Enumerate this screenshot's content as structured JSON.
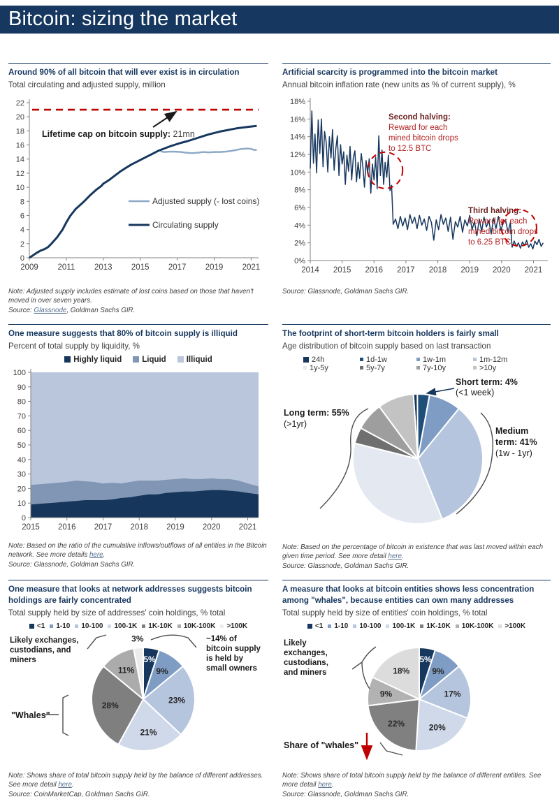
{
  "page": {
    "title": "Bitcoin: sizing the market"
  },
  "colors": {
    "band": "#16375f",
    "navy": "#17375e",
    "red": "#c00000",
    "link": "#55708e"
  },
  "sections": [
    {
      "id": "supply",
      "title": "Around 90% of all bitcoin that will ever exist is in circulation",
      "subtitle": "Total circulating and adjusted supply, million",
      "note": [
        {
          "text": "Note: Adjusted supply includes estimate of lost coins based on those that haven't moved in over seven years.\nSource: "
        },
        {
          "text": "Glassnode",
          "link": true
        },
        {
          "text": ", Goldman Sachs GIR."
        }
      ]
    },
    {
      "id": "inflation",
      "title": "Artificial scarcity is programmed into the bitcoin market",
      "subtitle": "Annual bitcoin inflation rate (new units as % of current supply), %",
      "note": [
        {
          "text": "Source: Glassnode, Goldman Sachs GIR."
        }
      ]
    },
    {
      "id": "liquidity",
      "title": "One measure suggests that 80% of bitcoin supply is illiquid",
      "subtitle": "Percent of total supply by liquidity, %",
      "note": [
        {
          "text": "Note: Based on the ratio of the cumulative inflows/outflows of all entities in the Bitcoin network. See more details "
        },
        {
          "text": "here",
          "link": true
        },
        {
          "text": ".\nSource: Glassnode, Goldman Sachs GIR."
        }
      ]
    },
    {
      "id": "age",
      "title": "The footprint of short-term bitcoin holders is fairly small",
      "subtitle": "Age distribution of bitcoin supply based on last transaction",
      "note": [
        {
          "text": "Note: Based on the percentage of bitcoin in existence that was last moved within each given time period. See more detail "
        },
        {
          "text": "here",
          "link": true
        },
        {
          "text": ".\nSource: Glassnode, Goldman Sachs GIR."
        }
      ]
    },
    {
      "id": "addresses",
      "title": "One measure that looks at network addresses suggests bitcoin holdings are fairly concentrated",
      "subtitle": "Total supply held by size of addresses' coin holdings, % total",
      "note": [
        {
          "text": "Note: Shows share of total bitcoin supply held by the balance of different addresses. See more detail "
        },
        {
          "text": "here",
          "link": true
        },
        {
          "text": ".\nSource: CoinMarketCap, Goldman Sachs GIR."
        }
      ]
    },
    {
      "id": "entities",
      "title": "A measure that looks at bitcoin entities shows less concentration among \"whales\", because entities can own many addresses",
      "subtitle": "Total supply held by size of entities' coin holdings, % total",
      "note": [
        {
          "text": "Note: Shows share of total bitcoin supply held by the balance of different entities. See more detail "
        },
        {
          "text": "here",
          "link": true
        },
        {
          "text": ".\nSource: Glassnode, Goldman Sachs GIR."
        }
      ]
    }
  ],
  "chart_data": [
    {
      "id": "supply",
      "type": "line",
      "title": "Around 90% of all bitcoin that will ever exist is in circulation",
      "ylabel": "Total circulating and adjusted supply, million",
      "xlim": [
        2009,
        2021.4
      ],
      "ylim": [
        0,
        22
      ],
      "ytick_step": 2,
      "xticks": [
        2009,
        2011,
        2013,
        2015,
        2017,
        2019,
        2021
      ],
      "cap_line": {
        "value": 21,
        "label_bold": "Lifetime cap on bitcoin supply:",
        "label_value": "21mn",
        "color": "#c00000"
      },
      "series": [
        {
          "name": "Adjusted supply (- lost coins)",
          "color": "#8ea9c7",
          "width": 2.5,
          "points": [
            [
              2016.1,
              15.1
            ],
            [
              2016.3,
              15.0
            ],
            [
              2016.6,
              15.05
            ],
            [
              2016.9,
              15.05
            ],
            [
              2017.2,
              15.0
            ],
            [
              2017.5,
              14.9
            ],
            [
              2017.8,
              14.85
            ],
            [
              2018.1,
              14.9
            ],
            [
              2018.4,
              15.0
            ],
            [
              2018.7,
              14.95
            ],
            [
              2019.0,
              15.0
            ],
            [
              2019.3,
              15.0
            ],
            [
              2019.6,
              15.05
            ],
            [
              2019.9,
              15.15
            ],
            [
              2020.2,
              15.3
            ],
            [
              2020.5,
              15.45
            ],
            [
              2020.8,
              15.5
            ],
            [
              2021.0,
              15.45
            ],
            [
              2021.15,
              15.3
            ],
            [
              2021.3,
              15.3
            ]
          ]
        },
        {
          "name": "Circulating supply",
          "color": "#17375e",
          "width": 3,
          "points": [
            [
              2009,
              0
            ],
            [
              2009.2,
              0.35
            ],
            [
              2009.4,
              0.7
            ],
            [
              2009.6,
              1.0
            ],
            [
              2009.8,
              1.2
            ],
            [
              2010,
              1.5
            ],
            [
              2010.2,
              2.0
            ],
            [
              2010.5,
              2.9
            ],
            [
              2010.8,
              4.0
            ],
            [
              2011,
              5.0
            ],
            [
              2011.2,
              5.9
            ],
            [
              2011.5,
              6.9
            ],
            [
              2011.8,
              7.6
            ],
            [
              2012,
              8.1
            ],
            [
              2012.3,
              8.9
            ],
            [
              2012.6,
              9.6
            ],
            [
              2012.9,
              10.2
            ],
            [
              2013,
              10.5
            ],
            [
              2013.3,
              11.0
            ],
            [
              2013.6,
              11.6
            ],
            [
              2013.9,
              12.2
            ],
            [
              2014.2,
              12.7
            ],
            [
              2014.5,
              13.2
            ],
            [
              2014.8,
              13.6
            ],
            [
              2015.1,
              14.0
            ],
            [
              2015.4,
              14.4
            ],
            [
              2015.7,
              14.8
            ],
            [
              2016,
              15.2
            ],
            [
              2016.3,
              15.5
            ],
            [
              2016.6,
              15.8
            ],
            [
              2016.9,
              16.05
            ],
            [
              2017.2,
              16.3
            ],
            [
              2017.5,
              16.5
            ],
            [
              2017.8,
              16.75
            ],
            [
              2018.1,
              17.0
            ],
            [
              2018.4,
              17.25
            ],
            [
              2018.7,
              17.5
            ],
            [
              2019,
              17.7
            ],
            [
              2019.3,
              17.9
            ],
            [
              2019.6,
              18.05
            ],
            [
              2019.9,
              18.2
            ],
            [
              2020.2,
              18.35
            ],
            [
              2020.5,
              18.45
            ],
            [
              2020.8,
              18.55
            ],
            [
              2021,
              18.62
            ],
            [
              2021.3,
              18.7
            ]
          ]
        }
      ]
    },
    {
      "id": "inflation",
      "type": "line",
      "title": "Artificial scarcity is programmed into the bitcoin market",
      "ylabel": "Annual bitcoin inflation rate, %",
      "xlim": [
        2014,
        2021.45
      ],
      "ylim": [
        0,
        18
      ],
      "ytick_step": 2,
      "y_suffix": "%",
      "xticks": [
        2014,
        2015,
        2016,
        2017,
        2018,
        2019,
        2020,
        2021
      ],
      "line_color": "#17375e",
      "segments": [
        {
          "x_start": 2014.0,
          "x_step": 0.05,
          "values": [
            10.4,
            16.9,
            11.0,
            14.3,
            9.9,
            15.9,
            12.1,
            16.0,
            10.6,
            14.6,
            13.4,
            10.0,
            14.0,
            11.6,
            14.8,
            10.2,
            12.6,
            14.1,
            9.6,
            13.1,
            10.9,
            12.3,
            8.6,
            11.9,
            10.1,
            12.9,
            9.1,
            11.6,
            12.4,
            8.9,
            11.1,
            9.3,
            12.1,
            10.6,
            8.3,
            11.3,
            9.9,
            11.5,
            7.6,
            10.9,
            9.1,
            11.7,
            8.1,
            14.1,
            9.6,
            12.5,
            8.6,
            11.1,
            9.4,
            11.9,
            7.9,
            8.5
          ]
        },
        {
          "x_start": 2016.6,
          "x_step": 0.075,
          "values": [
            4.1,
            4.7,
            3.6,
            5.0,
            3.9,
            4.8,
            3.5,
            5.2,
            4.2,
            4.9,
            3.6,
            5.1,
            4.0,
            4.7,
            3.4,
            5.0,
            4.3,
            2.3,
            4.6,
            3.5,
            5.2,
            4.1,
            4.8,
            3.3,
            4.9,
            2.4,
            4.4,
            3.8,
            5.0,
            3.2,
            4.6,
            3.9,
            5.1,
            3.5,
            4.4,
            2.8,
            4.7,
            3.3,
            4.9,
            3.8,
            4.5,
            3.0,
            4.8,
            3.6,
            5.0,
            3.4,
            4.2,
            4.6,
            3.2,
            4.3
          ]
        },
        {
          "x_start": 2020.33,
          "x_step": 0.065,
          "values": [
            1.5,
            2.2,
            1.6,
            2.0,
            1.4,
            2.1,
            1.7,
            2.3,
            1.5,
            1.9,
            1.3,
            2.2,
            1.8,
            2.4,
            1.6,
            2.0
          ]
        }
      ],
      "annotations": [
        {
          "id": "second",
          "lines": [
            "Second halving:",
            "Reward for each",
            "mined bitcoin drops",
            "to 12.5 BTC"
          ]
        },
        {
          "id": "third",
          "lines": [
            "Third halving:",
            "Reward for each",
            "mined bitcoin drops",
            "to 6.25 BTC"
          ]
        }
      ],
      "circles": [
        {
          "x": 2016.35,
          "y": 10.2
        },
        {
          "x": 2020.55,
          "y": 3.7
        }
      ]
    },
    {
      "id": "liquidity",
      "type": "area",
      "title": "One measure suggests that 80% of bitcoin supply is illiquid",
      "xlim": [
        2015,
        2021.3
      ],
      "ylim": [
        0,
        100
      ],
      "ytick_step": 10,
      "xticks": [
        2015,
        2016,
        2017,
        2018,
        2019,
        2020,
        2021
      ],
      "x": [
        2015,
        2015.25,
        2015.5,
        2015.75,
        2016,
        2016.25,
        2016.5,
        2016.75,
        2017,
        2017.25,
        2017.5,
        2017.75,
        2018,
        2018.25,
        2018.5,
        2018.75,
        2019,
        2019.25,
        2019.5,
        2019.75,
        2020,
        2020.25,
        2020.5,
        2020.75,
        2021,
        2021.3
      ],
      "series": [
        {
          "name": "Highly liquid",
          "color": "#16365c",
          "values": [
            9,
            9.5,
            10,
            10.5,
            11,
            11.5,
            12,
            12,
            12,
            12.5,
            13.5,
            14,
            15,
            16,
            16,
            17,
            17.5,
            18,
            18,
            18.5,
            19,
            19,
            18.5,
            18,
            17,
            16
          ]
        },
        {
          "name": "Liquid",
          "color": "#8096b4",
          "values_top": [
            22.5,
            23,
            23.5,
            24,
            24.5,
            25.5,
            25,
            24.5,
            23.5,
            24,
            23.5,
            24.5,
            25.5,
            25.5,
            25.5,
            26,
            26.5,
            27,
            26.5,
            26.5,
            27,
            26.5,
            26.5,
            25.5,
            23.5,
            21.5
          ]
        },
        {
          "name": "Illiquid",
          "color": "#b9c6dc"
        }
      ]
    },
    {
      "id": "age",
      "type": "pie",
      "title": "Age distribution of bitcoin supply based on last transaction",
      "start_deg": -4,
      "show_pct_labels": false,
      "slices": [
        {
          "label": "24h",
          "value": 1,
          "color": "#17375e"
        },
        {
          "label": "1d-1w",
          "value": 3,
          "color": "#1f4e79"
        },
        {
          "label": "1w-1m",
          "value": 8,
          "color": "#7f9dc4"
        },
        {
          "label": "1m-12m",
          "value": 33,
          "color": "#b5c5de"
        },
        {
          "label": "1y-5y",
          "value": 35,
          "color": "#e4e8f0"
        },
        {
          "label": "5y-7y",
          "value": 4,
          "color": "#6f6f6f"
        },
        {
          "label": "7y-10y",
          "value": 7,
          "color": "#9e9e9e"
        },
        {
          "label": ">10y",
          "value": 9,
          "color": "#c3c3c3"
        }
      ],
      "callouts": [
        {
          "id": "short",
          "lines": [
            "Short term: 4%",
            "(<1 week)"
          ]
        },
        {
          "id": "medium",
          "lines": [
            "Medium",
            "term: 41%",
            "(1w - 1yr)"
          ]
        },
        {
          "id": "long",
          "lines": [
            "Long term: 55%",
            "(>1yr)"
          ]
        }
      ]
    },
    {
      "id": "addresses",
      "type": "pie",
      "title": "Total supply held by size of addresses' coin holdings, % total",
      "start_deg": 0,
      "show_pct_labels": true,
      "slices": [
        {
          "label": "<1",
          "value": 5,
          "color": "#17375e",
          "text_color": "#ffffff"
        },
        {
          "label": "1-10",
          "value": 9,
          "color": "#7f9dc4"
        },
        {
          "label": "10-100",
          "value": 23,
          "color": "#b5c5de"
        },
        {
          "label": "100-1K",
          "value": 21,
          "color": "#cfd9ea"
        },
        {
          "label": "1K-10K",
          "value": 28,
          "color": "#7f7f7f"
        },
        {
          "label": "10K-100K",
          "value": 11,
          "color": "#ababab"
        },
        {
          "label": ">100K",
          "value": 3,
          "color": "#ececec",
          "outside": true
        }
      ],
      "callouts": [
        {
          "id": "exchanges",
          "lines": [
            "Likely exchanges,",
            "custodians, and",
            "miners"
          ]
        },
        {
          "id": "small-owners",
          "lines": [
            "~14% of",
            "bitcoin supply",
            "is held by",
            "small owners"
          ]
        },
        {
          "id": "whales",
          "lines": [
            "\"Whales\""
          ]
        }
      ]
    },
    {
      "id": "entities",
      "type": "pie",
      "title": "Total supply held by size of entities' coin holdings, % total",
      "start_deg": 0,
      "show_pct_labels": true,
      "slices": [
        {
          "label": "<1",
          "value": 5,
          "color": "#17375e",
          "text_color": "#ffffff"
        },
        {
          "label": "1-10",
          "value": 9,
          "color": "#7f9dc4"
        },
        {
          "label": "10-100",
          "value": 17,
          "color": "#b5c5de"
        },
        {
          "label": "100-1K",
          "value": 20,
          "color": "#cfd9ea"
        },
        {
          "label": "1K-10K",
          "value": 22,
          "color": "#808080"
        },
        {
          "label": "10K-100K",
          "value": 9,
          "color": "#b2b2b2"
        },
        {
          "label": ">100K",
          "value": 18,
          "color": "#dcdcdc"
        }
      ],
      "callouts": [
        {
          "id": "exchanges",
          "lines": [
            "Likely",
            "exchanges,",
            "custodians,",
            "and miners"
          ]
        },
        {
          "id": "whales",
          "lines": [
            "Share of \"whales\""
          ]
        }
      ]
    }
  ]
}
